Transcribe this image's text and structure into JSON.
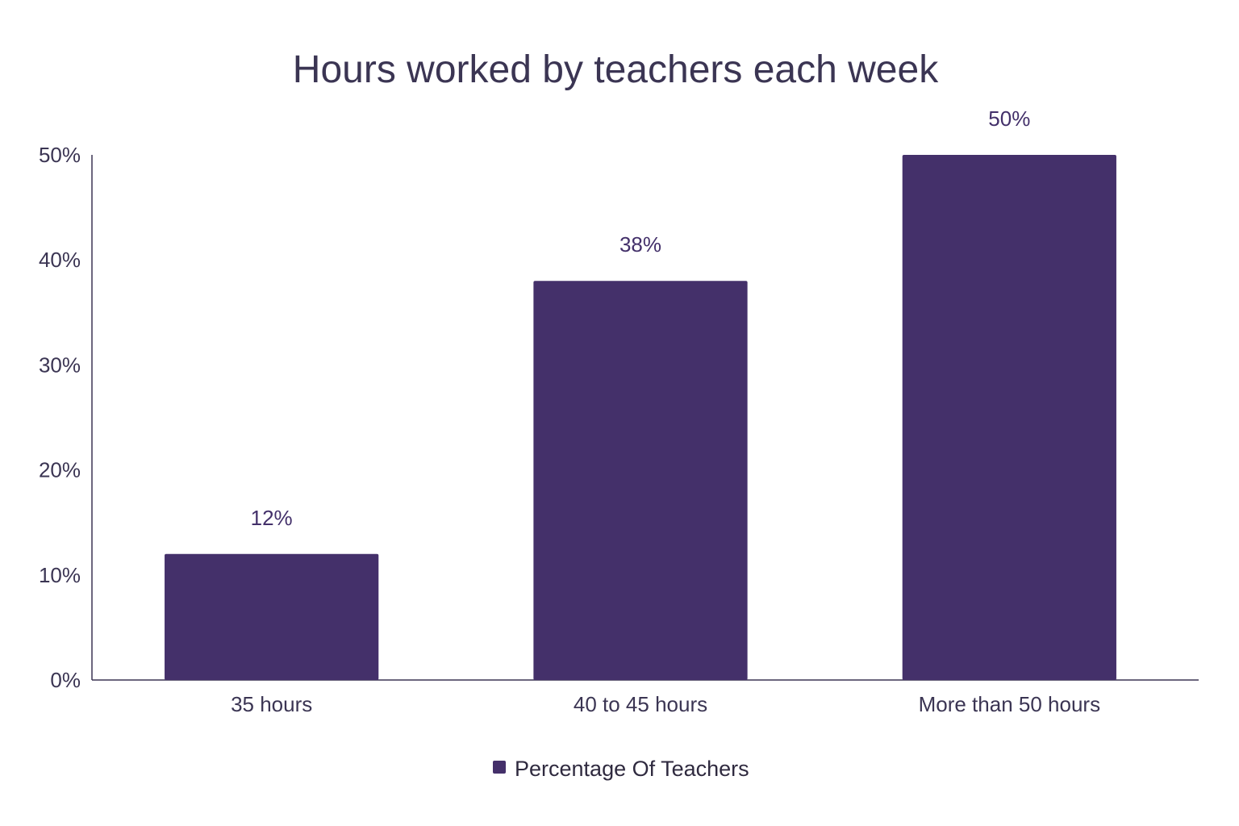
{
  "chart_data": {
    "type": "bar",
    "title": "Hours worked by teachers each week",
    "xlabel": "",
    "ylabel": "",
    "categories": [
      "35 hours",
      "40 to 45 hours",
      "More than 50 hours"
    ],
    "series": [
      {
        "name": "Percentage Of Teachers",
        "values": [
          12,
          38,
          50
        ],
        "value_labels": [
          "12%",
          "38%",
          "50%"
        ],
        "color": "#44306a"
      }
    ],
    "ylim": [
      0,
      50
    ],
    "yticks": [
      0,
      10,
      20,
      30,
      40,
      50
    ],
    "ytick_labels": [
      "0%",
      "10%",
      "20%",
      "30%",
      "40%",
      "50%"
    ],
    "grid": false,
    "legend_position": "bottom-center"
  },
  "colors": {
    "bar": "#44306a",
    "text": "#3b3553",
    "axis": "#3b3553"
  }
}
